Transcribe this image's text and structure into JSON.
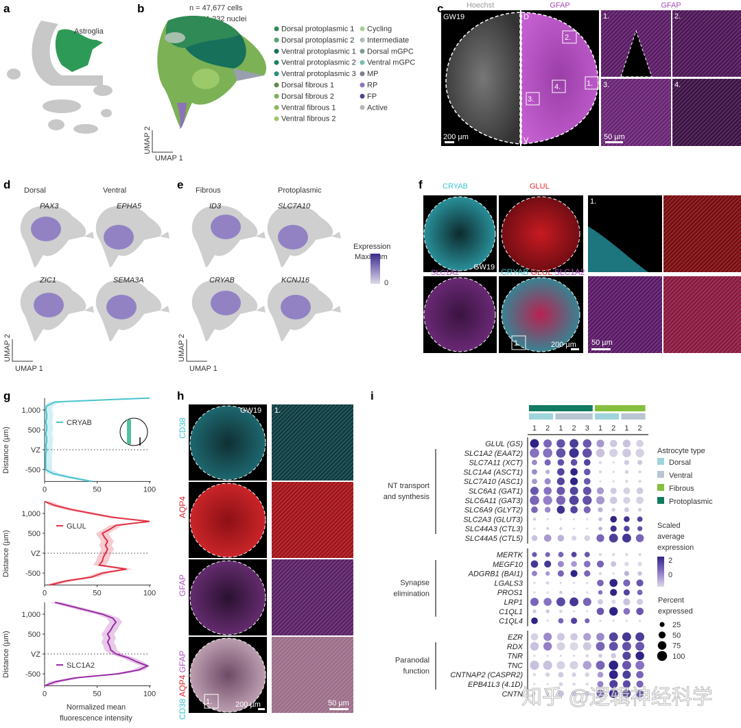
{
  "panel_labels": {
    "a": "a",
    "b": "b",
    "c": "c",
    "d": "d",
    "e": "e",
    "f": "f",
    "g": "g",
    "h": "h",
    "i": "i"
  },
  "panel_a": {
    "cluster_label": "Astroglia",
    "highlight_color": "#2e9a57"
  },
  "panel_b": {
    "n_cells": "n = 47,677 cells",
    "n_nuclei": "n = 11,232 nuclei",
    "axis_x": "UMAP 1",
    "axis_y": "UMAP 2",
    "legend": [
      {
        "label": "Dorsal protoplasmic 1",
        "color": "#2f8a55"
      },
      {
        "label": "Dorsal protoplasmic 2",
        "color": "#4fa36e"
      },
      {
        "label": "Ventral protoplasmic 1",
        "color": "#16705a"
      },
      {
        "label": "Ventral protoplasmic 2",
        "color": "#1d8160"
      },
      {
        "label": "Ventral protoplasmic 3",
        "color": "#2d8f77"
      },
      {
        "label": "Dorsal fibrous 1",
        "color": "#5e8a4a"
      },
      {
        "label": "Dorsal fibrous 2",
        "color": "#7cb155"
      },
      {
        "label": "Ventral fibrous 1",
        "color": "#89b75c"
      },
      {
        "label": "Ventral fibrous 2",
        "color": "#9cc96a"
      },
      {
        "label": "Cycling",
        "color": "#a6cf94"
      },
      {
        "label": "Intermediate",
        "color": "#a7c0ad"
      },
      {
        "label": "Dorsal mGPC",
        "color": "#7f9a93"
      },
      {
        "label": "Ventral mGPC",
        "color": "#78bdb2"
      },
      {
        "label": "MP",
        "color": "#7b7f8c"
      },
      {
        "label": "RP",
        "color": "#8d73b8"
      },
      {
        "label": "FP",
        "color": "#4d4585"
      },
      {
        "label": "Active",
        "color": "#b5b5b5"
      }
    ]
  },
  "panel_c": {
    "col_titles": [
      "Hoechst",
      "GFAP",
      "GFAP"
    ],
    "age": "GW19",
    "dorsal": "D",
    "ventral": "V",
    "roi_labels": [
      "1.",
      "2.",
      "3.",
      "4."
    ],
    "zoom_labels": [
      "1.",
      "2.",
      "3.",
      "4."
    ],
    "scale_1": "200 µm",
    "scale_2": "50 µm",
    "hoechst_color": "#e6e6e6",
    "gfap_color": "#b04fc0"
  },
  "panel_d": {
    "col_titles": [
      "Dorsal",
      "Ventral"
    ],
    "genes": [
      "PAX3",
      "EPHA5",
      "ZIC1",
      "SEMA3A"
    ],
    "axis_x": "UMAP 1",
    "axis_y": "UMAP 2"
  },
  "panel_e": {
    "col_titles": [
      "Fibrous",
      "Protoplasmic"
    ],
    "genes": [
      "ID3",
      "SLC7A10",
      "CRYAB",
      "KCNJ16"
    ],
    "axis_x": "UMAP 1",
    "axis_y": "UMAP 2",
    "colorbar_title": "Expression",
    "colorbar_max": "Maximum",
    "colorbar_min": "0",
    "colorbar_colors": [
      "#dcd8e8",
      "#3b2a8c"
    ]
  },
  "panel_f": {
    "titles": [
      "CRYAB",
      "GLUL"
    ],
    "row2_label": "SLC1A2",
    "merge_labels": [
      "CRYAB",
      "GLUL",
      "SLC1A2"
    ],
    "age": "GW19",
    "roi": "1.",
    "zoom_label": "1.",
    "scale_1": "200 µm",
    "scale_2": "50 µm",
    "colors": {
      "CRYAB": "#39c5d0",
      "GLUL": "#e0262e",
      "SLC1A2": "#b34fc4"
    }
  },
  "panel_h": {
    "row_labels": [
      "CD38",
      "AQP4",
      "GFAP"
    ],
    "merge_labels": [
      "CD38",
      "AQP4",
      "GFAP"
    ],
    "age": "GW19",
    "roi": "1.",
    "zoom_label": "1.",
    "scale_1": "200 µm",
    "scale_2": "50 µm",
    "colors": {
      "CD38": "#39c5d0",
      "AQP4": "#e0262e",
      "GFAP": "#b34fc4"
    }
  },
  "chart_data": {
    "type": "line",
    "xlabel": "Normalized mean fluorescence intensity",
    "ylabel": "Distance (µm)",
    "xlim": [
      0,
      100
    ],
    "ylim": [
      -800,
      1300
    ],
    "xticks": [
      "0",
      "50",
      "100"
    ],
    "yticks": [
      {
        "value": 1000,
        "label": "1,000"
      },
      {
        "value": 500,
        "label": "500"
      },
      {
        "value": 0,
        "label": "VZ"
      },
      {
        "value": -500,
        "label": "-500"
      }
    ],
    "reference_line": {
      "y": 0,
      "label": "VZ",
      "style": "dotted"
    },
    "y_values": [
      1300,
      1200,
      1100,
      1000,
      900,
      800,
      700,
      600,
      500,
      400,
      300,
      200,
      100,
      0,
      -100,
      -200,
      -300,
      -400,
      -500,
      -600,
      -700,
      -800
    ],
    "series": [
      {
        "name": "CRYAB",
        "color": "#49c3cf",
        "x": [
          100,
          10,
          2,
          1,
          2,
          2,
          1,
          2,
          2,
          1,
          2,
          2,
          1,
          2,
          1,
          1,
          1,
          1,
          1,
          8,
          25,
          45
        ]
      },
      {
        "name": "GLUL",
        "color": "#e03043",
        "x": [
          0,
          10,
          25,
          45,
          65,
          100,
          68,
          62,
          55,
          57,
          60,
          58,
          60,
          58,
          56,
          55,
          52,
          78,
          55,
          45,
          20,
          5
        ]
      },
      {
        "name": "SLC1A2",
        "color": "#9a2aa4",
        "x": [
          10,
          25,
          40,
          55,
          65,
          68,
          65,
          63,
          60,
          62,
          60,
          62,
          63,
          68,
          80,
          88,
          98,
          90,
          70,
          30,
          10,
          0
        ]
      }
    ]
  },
  "panel_i": {
    "top_groups": [
      {
        "label": "Protoplasmic",
        "color": "#127a60",
        "span": 5
      },
      {
        "label": "Fibrous",
        "color": "#86bf3e",
        "span": 4
      }
    ],
    "sub_groups": [
      {
        "color": "#9fd4dc",
        "span": 2
      },
      {
        "color": "#b9c5d1",
        "span": 3
      },
      {
        "color": "#9fd4dc",
        "span": 2
      },
      {
        "color": "#b9c5d1",
        "span": 2
      }
    ],
    "columns": [
      "1",
      "2",
      "1",
      "2",
      "3",
      "1",
      "2",
      "1",
      "2"
    ],
    "categories": [
      {
        "label": [
          "NT transport",
          "and synthesis"
        ],
        "genes": [
          {
            "name": "GLUL (GS)",
            "pct": [
              80,
              70,
              75,
              80,
              75,
              60,
              55,
              60,
              55
            ],
            "exp": [
              2,
              1,
              1.3,
              1.6,
              1.2,
              0.3,
              -0.3,
              -0.2,
              -0.4
            ]
          },
          {
            "name": "SLC1A2 (EAAT2)",
            "pct": [
              90,
              90,
              90,
              95,
              90,
              75,
              70,
              75,
              75
            ],
            "exp": [
              0.8,
              0.8,
              1.3,
              1.8,
              1.3,
              -0.2,
              -0.4,
              -0.3,
              -0.4
            ]
          },
          {
            "name": "SLC7A11 (XCT)",
            "pct": [
              30,
              40,
              45,
              45,
              45,
              10,
              5,
              25,
              25
            ],
            "exp": [
              0.5,
              1,
              1.3,
              1.3,
              1.5,
              -0.5,
              -0.5,
              -0.3,
              -0.3
            ]
          },
          {
            "name": "SLC1A4 (ASCT1)",
            "pct": [
              30,
              20,
              55,
              55,
              45,
              10,
              5,
              15,
              10
            ],
            "exp": [
              0.5,
              0,
              1.5,
              2,
              1.2,
              -0.5,
              -0.5,
              -0.4,
              -0.5
            ]
          },
          {
            "name": "SLC7A10 (ASC1)",
            "pct": [
              30,
              40,
              60,
              60,
              45,
              5,
              5,
              10,
              10
            ],
            "exp": [
              0.3,
              0.5,
              1.5,
              2,
              1.2,
              -0.5,
              -0.5,
              -0.5,
              -0.5
            ]
          },
          {
            "name": "SLC6A1 (GAT1)",
            "pct": [
              70,
              65,
              70,
              70,
              70,
              50,
              40,
              45,
              45
            ],
            "exp": [
              1.2,
              0.8,
              1.2,
              1.5,
              1.3,
              0.3,
              -0.3,
              -0.4,
              -0.3
            ]
          },
          {
            "name": "SLC6A11 (GAT3)",
            "pct": [
              90,
              85,
              85,
              90,
              85,
              70,
              55,
              50,
              55
            ],
            "exp": [
              1,
              0.6,
              1,
              1.5,
              1.3,
              0.3,
              -0.3,
              -0.4,
              -0.4
            ]
          },
          {
            "name": "SLC6A9 (GLYT2)",
            "pct": [
              45,
              35,
              65,
              55,
              50,
              25,
              15,
              25,
              15
            ],
            "exp": [
              1,
              0.5,
              1.8,
              1.5,
              1,
              0,
              -0.4,
              -0.3,
              -0.4
            ]
          },
          {
            "name": "SLC2A3 (GLUT3)",
            "pct": [
              10,
              5,
              5,
              5,
              5,
              15,
              45,
              35,
              30
            ],
            "exp": [
              -0.3,
              -0.5,
              -0.5,
              -0.5,
              -0.5,
              -0.2,
              2,
              1.8,
              1.5
            ]
          },
          {
            "name": "SLC44A3 (CTL3)",
            "pct": [
              5,
              10,
              10,
              5,
              5,
              15,
              40,
              35,
              25
            ],
            "exp": [
              -0.5,
              -0.4,
              -0.4,
              -0.5,
              -0.5,
              0,
              1.8,
              1.5,
              1.3
            ]
          },
          {
            "name": "SLC44A5 (CTL5)",
            "pct": [
              35,
              55,
              45,
              25,
              35,
              60,
              80,
              80,
              65
            ],
            "exp": [
              -0.2,
              0.3,
              0,
              -0.4,
              -0.4,
              1,
              1.6,
              1.7,
              1
            ]
          }
        ]
      },
      {
        "label": [
          "Synapse",
          "elimination"
        ],
        "genes": [
          {
            "name": "MERTK",
            "pct": [
              25,
              25,
              30,
              30,
              30,
              10,
              10,
              10,
              10
            ],
            "exp": [
              1.2,
              1,
              1,
              1.5,
              1.2,
              -0.5,
              -0.5,
              -0.5,
              -0.5
            ]
          },
          {
            "name": "MEGF10",
            "pct": [
              55,
              50,
              40,
              35,
              45,
              50,
              30,
              20,
              20
            ],
            "exp": [
              1.7,
              1.7,
              0.5,
              0.3,
              0.8,
              1,
              -0.2,
              -0.5,
              -0.5
            ]
          },
          {
            "name": "ADGRB1 (BAI1)",
            "pct": [
              30,
              20,
              40,
              50,
              40,
              10,
              5,
              25,
              20
            ],
            "exp": [
              0.6,
              0.3,
              1,
              2,
              1,
              -0.5,
              -0.5,
              0,
              -0.2
            ]
          },
          {
            "name": "LGALS3",
            "pct": [
              5,
              10,
              5,
              5,
              5,
              45,
              65,
              50,
              50
            ],
            "exp": [
              -0.5,
              -0.4,
              -0.5,
              -0.5,
              -0.5,
              1,
              2,
              1,
              1.2
            ]
          },
          {
            "name": "PROS1",
            "pct": [
              5,
              5,
              10,
              5,
              5,
              20,
              50,
              40,
              30
            ],
            "exp": [
              -0.5,
              -0.5,
              -0.3,
              -0.5,
              -0.5,
              0.8,
              2,
              1.5,
              1
            ]
          },
          {
            "name": "LRP1",
            "pct": [
              70,
              65,
              80,
              80,
              70,
              30,
              20,
              50,
              40
            ],
            "exp": [
              1,
              0.8,
              1.4,
              1.7,
              1,
              -0.3,
              -0.5,
              -0.2,
              -0.3
            ]
          },
          {
            "name": "C1QL1",
            "pct": [
              15,
              15,
              10,
              5,
              5,
              55,
              75,
              45,
              55
            ],
            "exp": [
              -0.3,
              -0.3,
              -0.4,
              -0.5,
              -0.5,
              1.2,
              2,
              0.8,
              1.2
            ]
          },
          {
            "name": "C1QL4",
            "pct": [
              45,
              5,
              30,
              40,
              25,
              5,
              5,
              5,
              5
            ],
            "exp": [
              2,
              -0.5,
              1,
              1.5,
              1,
              -0.5,
              -0.5,
              -0.5,
              -0.5
            ]
          }
        ]
      },
      {
        "label": [
          "Paranodal",
          "function"
        ],
        "genes": [
          {
            "name": "EZR",
            "pct": [
              55,
              70,
              60,
              55,
              60,
              65,
              80,
              80,
              80
            ],
            "exp": [
              -0.4,
              0.5,
              -0.3,
              -0.3,
              0.2,
              0.5,
              1.5,
              1.7,
              1.6
            ]
          },
          {
            "name": "RDX",
            "pct": [
              75,
              75,
              70,
              70,
              70,
              80,
              80,
              80,
              80
            ],
            "exp": [
              -0.2,
              0.6,
              -0.4,
              -0.5,
              -0.3,
              1,
              1.3,
              1.3,
              1.2
            ]
          },
          {
            "name": "TNR",
            "pct": [
              5,
              5,
              5,
              5,
              10,
              15,
              30,
              70,
              75
            ],
            "exp": [
              -0.5,
              -0.5,
              -0.5,
              -0.5,
              -0.4,
              -0.3,
              -0.3,
              1.5,
              2
            ]
          },
          {
            "name": "TNC",
            "pct": [
              85,
              85,
              70,
              70,
              75,
              80,
              90,
              80,
              80
            ],
            "exp": [
              -0.2,
              -0.2,
              -0.4,
              -0.4,
              0.2,
              1,
              2,
              1.2,
              0.8
            ]
          },
          {
            "name": "CNTNAP2 (CASPR2)",
            "pct": [
              10,
              20,
              30,
              20,
              20,
              35,
              80,
              70,
              55
            ],
            "exp": [
              -0.5,
              -0.4,
              -0.3,
              -0.4,
              -0.4,
              0.3,
              2,
              1.6,
              1
            ]
          },
          {
            "name": "EPB41L3 (4.1D)",
            "pct": [
              5,
              5,
              15,
              10,
              10,
              40,
              70,
              60,
              50
            ],
            "exp": [
              -0.5,
              -0.5,
              -0.4,
              -0.5,
              -0.5,
              0.6,
              1.6,
              1.4,
              1
            ]
          },
          {
            "name": "CNTN",
            "pct": [
              10,
              15,
              40,
              30,
              30,
              60,
              80,
              70,
              60
            ],
            "exp": [
              -0.5,
              -0.4,
              -0.2,
              -0.3,
              -0.3,
              1,
              1.8,
              1.5,
              1.2
            ]
          }
        ]
      }
    ],
    "legend_type_title": "Astrocyte type",
    "legend_types": [
      {
        "label": "Dorsal",
        "color": "#9fd4dc"
      },
      {
        "label": "Ventral",
        "color": "#b9c5d1"
      },
      {
        "label": "Fibrous",
        "color": "#86bf3e"
      },
      {
        "label": "Protoplasmic",
        "color": "#127a60"
      }
    ],
    "legend_exp_title": [
      "Scaled",
      "average",
      "expression"
    ],
    "legend_exp_ticks": [
      "2",
      "0"
    ],
    "legend_exp_colors": [
      "#dcd9e6",
      "#8b74c4",
      "#2f2485"
    ],
    "legend_pct_title": [
      "Percent",
      "expressed"
    ],
    "legend_pct": [
      "25",
      "50",
      "75",
      "100"
    ]
  },
  "watermark": "知乎 @逻辑神经科学"
}
